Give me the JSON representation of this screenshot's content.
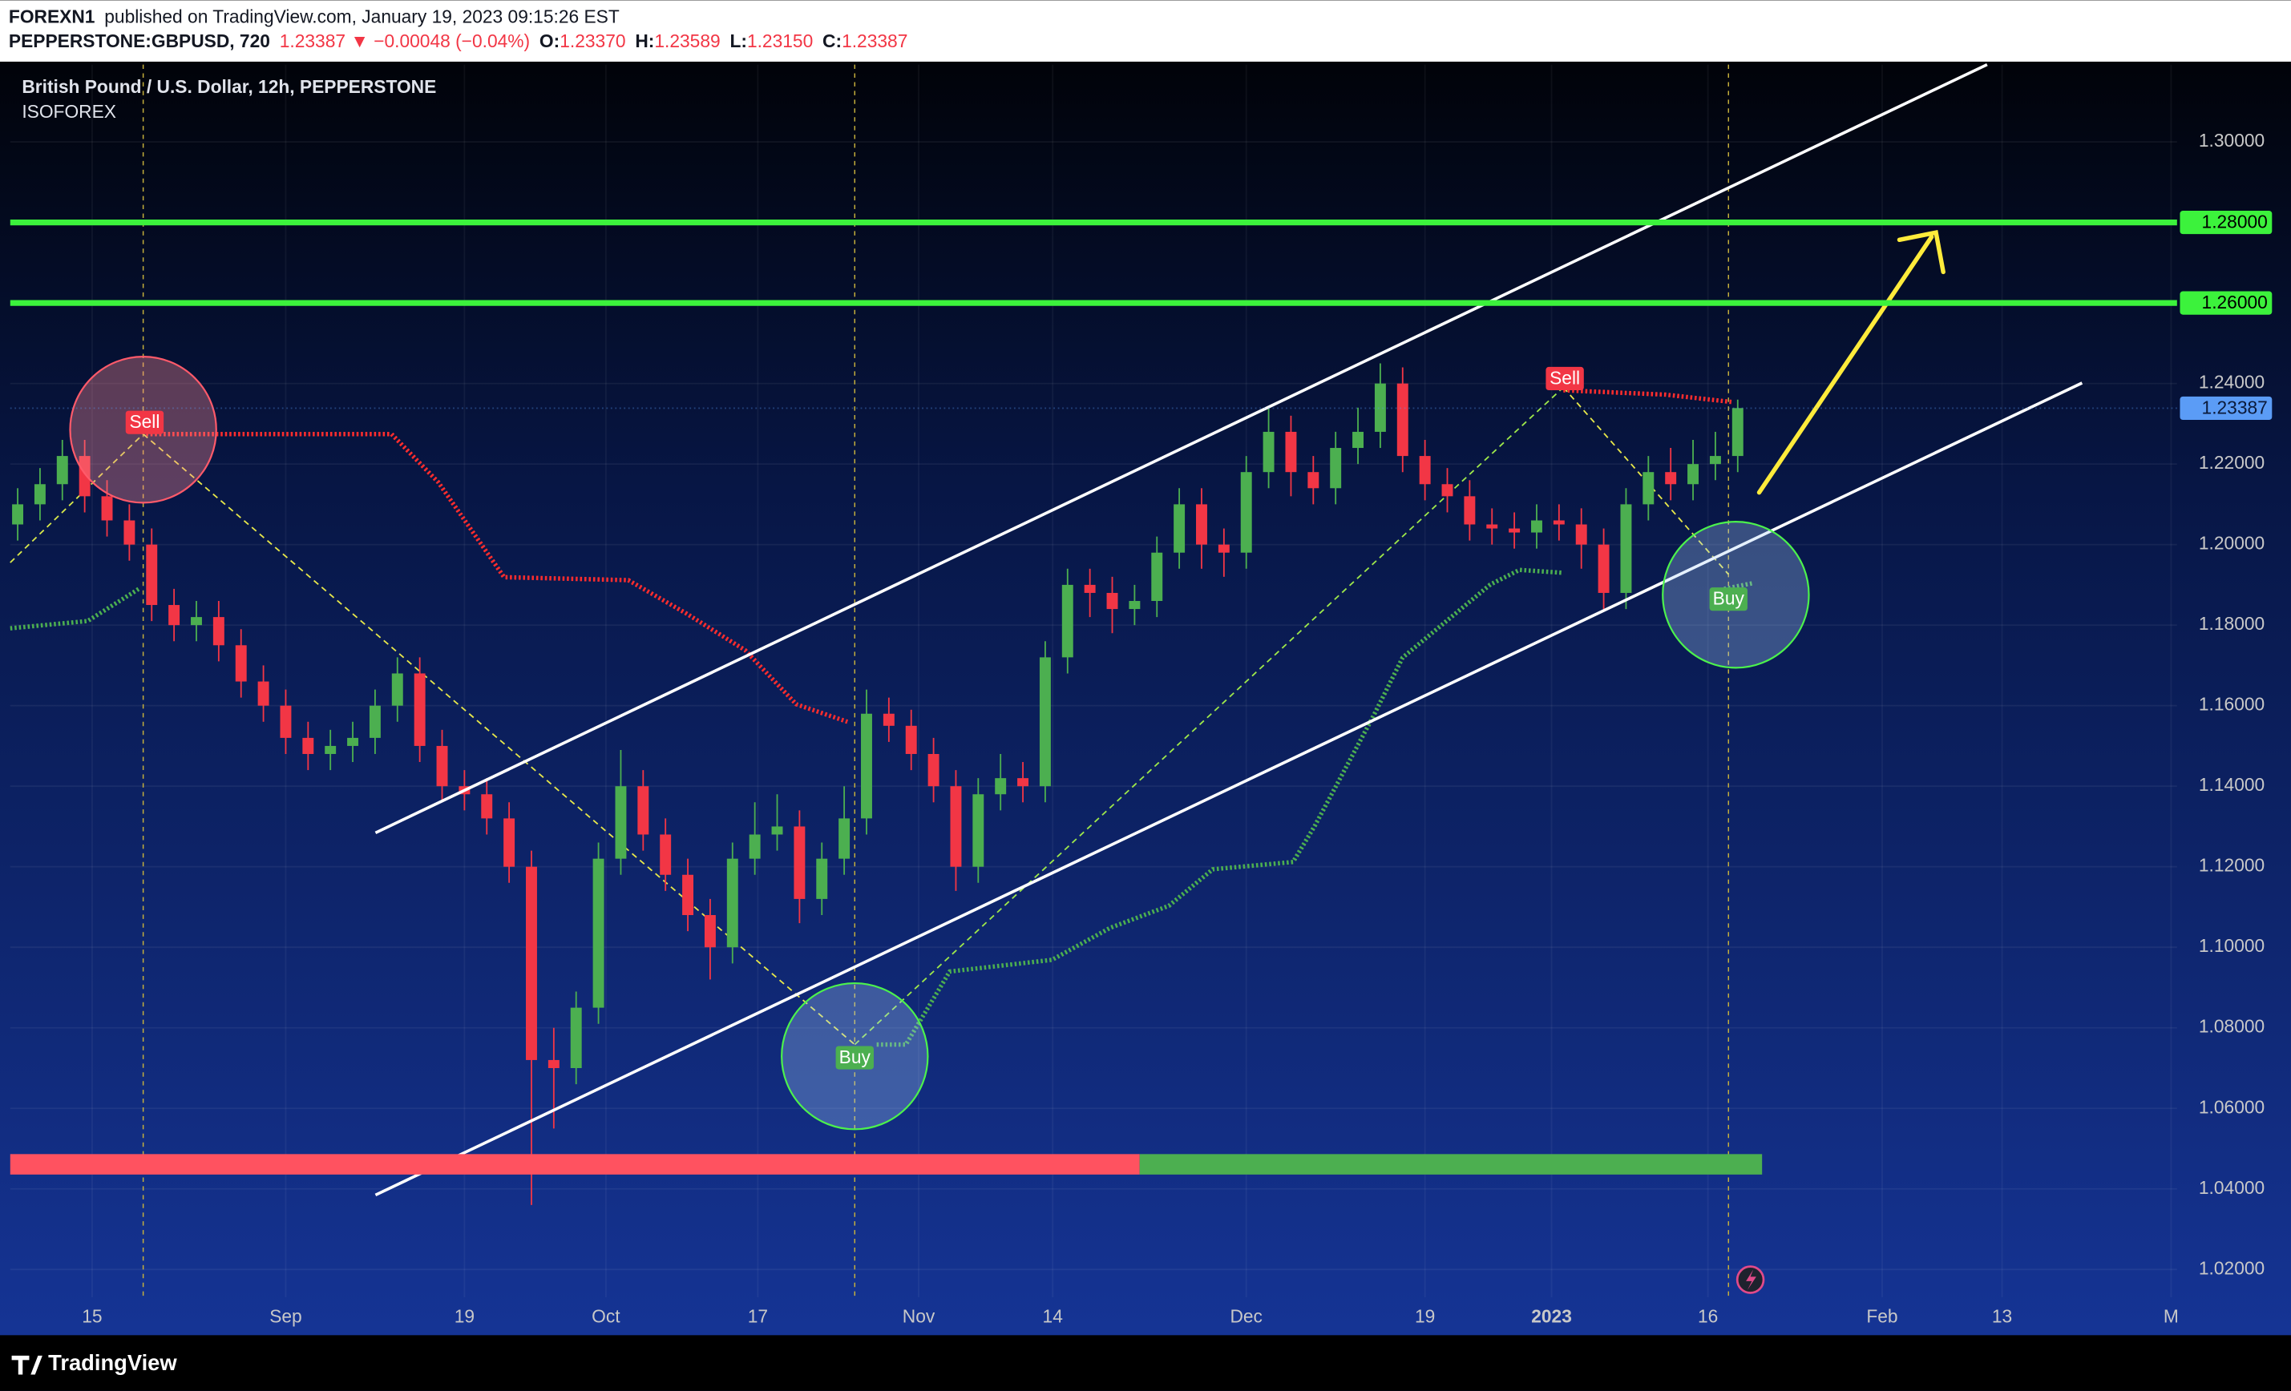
{
  "chart_data": {
    "type": "candlestick",
    "header": {
      "publisher": "FOREXN1",
      "published": "published on TradingView.com, January 19, 2023 09:15:26 EST",
      "symbol": "PEPPERSTONE:GBPUSD, 720",
      "change": "1.23387 ▼ −0.00048 (−0.04%)",
      "ohlc": [
        {
          "label": "O:",
          "value": "1.23370"
        },
        {
          "label": "H:",
          "value": "1.23589"
        },
        {
          "label": "L:",
          "value": "1.23150"
        },
        {
          "label": "C:",
          "value": "1.23387"
        }
      ]
    },
    "title": "British Pound / U.S. Dollar, 12h, PEPPERSTONE",
    "subtitle": "ISOFOREX",
    "signals": [
      "Sell",
      "Buy",
      "Sell",
      "Buy"
    ],
    "brand": "TradingView",
    "colors": {
      "up": "#4caf50",
      "down": "#f23645",
      "level": "#3cf23c",
      "last": "#5b9cf6"
    },
    "xlim": [
      0,
      291
    ],
    "xticks": [
      {
        "value": 11,
        "label": "15"
      },
      {
        "value": 37,
        "label": "Sep"
      },
      {
        "value": 61,
        "label": "19"
      },
      {
        "value": 80,
        "label": "Oct"
      },
      {
        "value": 100.4,
        "label": "17"
      },
      {
        "value": 122,
        "label": "Nov"
      },
      {
        "value": 140,
        "label": "14"
      },
      {
        "value": 166,
        "label": "Dec"
      },
      {
        "value": 190,
        "label": "19"
      },
      {
        "value": 207,
        "label": "2023"
      },
      {
        "value": 228,
        "label": "16"
      },
      {
        "value": 251.4,
        "label": "Feb"
      },
      {
        "value": 267.5,
        "label": "13"
      },
      {
        "value": 290.2,
        "label": "M"
      }
    ],
    "ylim": [
      1.0131,
      1.3192
    ],
    "yticks": [
      {
        "value": 1.3,
        "label": "1.30000"
      },
      {
        "value": 1.24,
        "label": "1.24000"
      },
      {
        "value": 1.22,
        "label": "1.22000"
      },
      {
        "value": 1.2,
        "label": "1.20000"
      },
      {
        "value": 1.18,
        "label": "1.18000"
      },
      {
        "value": 1.16,
        "label": "1.16000"
      },
      {
        "value": 1.14,
        "label": "1.14000"
      },
      {
        "value": 1.12,
        "label": "1.12000"
      },
      {
        "value": 1.1,
        "label": "1.10000"
      },
      {
        "value": 1.08,
        "label": "1.08000"
      },
      {
        "value": 1.06,
        "label": "1.06000"
      },
      {
        "value": 1.04,
        "label": "1.04000"
      },
      {
        "value": 1.02,
        "label": "1.02000"
      }
    ],
    "levels": [
      {
        "value": 1.28,
        "label": "1.28000"
      },
      {
        "value": 1.26,
        "label": "1.26000"
      }
    ],
    "last_price": {
      "value": 1.23387,
      "label": "1.23387"
    },
    "x": [
      1,
      4,
      7,
      10,
      13,
      16,
      19,
      22,
      25,
      28,
      31,
      34,
      37,
      40,
      43,
      46,
      49,
      52,
      55,
      58,
      61,
      64,
      67,
      70,
      73,
      76,
      79,
      82,
      85,
      88,
      91,
      94,
      97,
      100,
      103,
      106,
      109,
      112,
      115,
      118,
      121,
      124,
      127,
      130,
      133,
      136,
      139,
      142,
      145,
      148,
      151,
      154,
      157,
      160,
      163,
      166,
      169,
      172,
      175,
      178,
      181,
      184,
      187,
      190,
      193,
      196,
      199,
      202,
      205,
      208,
      211,
      214,
      217,
      220,
      223,
      226,
      229,
      232
    ],
    "open": [
      1.205,
      1.21,
      1.215,
      1.222,
      1.212,
      1.206,
      1.2,
      1.185,
      1.18,
      1.182,
      1.175,
      1.166,
      1.16,
      1.152,
      1.148,
      1.15,
      1.152,
      1.16,
      1.168,
      1.15,
      1.14,
      1.138,
      1.132,
      1.12,
      1.072,
      1.07,
      1.085,
      1.122,
      1.14,
      1.128,
      1.118,
      1.108,
      1.1,
      1.122,
      1.128,
      1.13,
      1.112,
      1.122,
      1.132,
      1.158,
      1.155,
      1.148,
      1.14,
      1.12,
      1.138,
      1.142,
      1.14,
      1.172,
      1.19,
      1.188,
      1.184,
      1.186,
      1.198,
      1.21,
      1.2,
      1.198,
      1.218,
      1.228,
      1.218,
      1.214,
      1.224,
      1.228,
      1.24,
      1.222,
      1.215,
      1.212,
      1.205,
      1.204,
      1.203,
      1.206,
      1.205,
      1.2,
      1.188,
      1.21,
      1.218,
      1.215,
      1.22,
      1.222
    ],
    "high": [
      1.214,
      1.219,
      1.226,
      1.226,
      1.216,
      1.21,
      1.204,
      1.189,
      1.186,
      1.186,
      1.179,
      1.17,
      1.164,
      1.156,
      1.154,
      1.156,
      1.164,
      1.172,
      1.172,
      1.154,
      1.144,
      1.142,
      1.136,
      1.124,
      1.08,
      1.089,
      1.126,
      1.149,
      1.144,
      1.132,
      1.122,
      1.112,
      1.126,
      1.136,
      1.138,
      1.134,
      1.126,
      1.14,
      1.164,
      1.162,
      1.159,
      1.152,
      1.144,
      1.142,
      1.148,
      1.146,
      1.176,
      1.194,
      1.194,
      1.192,
      1.19,
      1.202,
      1.214,
      1.214,
      1.204,
      1.222,
      1.234,
      1.232,
      1.222,
      1.228,
      1.234,
      1.245,
      1.244,
      1.226,
      1.219,
      1.216,
      1.209,
      1.208,
      1.21,
      1.21,
      1.209,
      1.204,
      1.214,
      1.222,
      1.224,
      1.226,
      1.228,
      1.236
    ],
    "low": [
      1.201,
      1.206,
      1.211,
      1.208,
      1.202,
      1.196,
      1.181,
      1.176,
      1.176,
      1.171,
      1.162,
      1.156,
      1.148,
      1.144,
      1.144,
      1.146,
      1.148,
      1.156,
      1.146,
      1.136,
      1.134,
      1.128,
      1.116,
      1.036,
      1.055,
      1.066,
      1.081,
      1.118,
      1.124,
      1.114,
      1.104,
      1.092,
      1.096,
      1.118,
      1.124,
      1.106,
      1.108,
      1.118,
      1.128,
      1.151,
      1.144,
      1.136,
      1.114,
      1.116,
      1.134,
      1.136,
      1.136,
      1.168,
      1.182,
      1.178,
      1.18,
      1.182,
      1.194,
      1.194,
      1.192,
      1.194,
      1.214,
      1.212,
      1.21,
      1.21,
      1.22,
      1.224,
      1.218,
      1.211,
      1.208,
      1.201,
      1.2,
      1.199,
      1.199,
      1.201,
      1.194,
      1.184,
      1.184,
      1.206,
      1.211,
      1.211,
      1.216,
      1.218
    ],
    "close": [
      1.21,
      1.215,
      1.222,
      1.212,
      1.206,
      1.2,
      1.185,
      1.18,
      1.182,
      1.175,
      1.166,
      1.16,
      1.152,
      1.148,
      1.15,
      1.152,
      1.16,
      1.168,
      1.15,
      1.14,
      1.138,
      1.132,
      1.12,
      1.072,
      1.07,
      1.085,
      1.122,
      1.14,
      1.128,
      1.118,
      1.108,
      1.1,
      1.122,
      1.128,
      1.13,
      1.112,
      1.122,
      1.132,
      1.158,
      1.155,
      1.148,
      1.14,
      1.12,
      1.138,
      1.142,
      1.14,
      1.172,
      1.19,
      1.188,
      1.184,
      1.186,
      1.198,
      1.21,
      1.2,
      1.198,
      1.218,
      1.228,
      1.218,
      1.214,
      1.224,
      1.228,
      1.24,
      1.222,
      1.215,
      1.212,
      1.205,
      1.204,
      1.203,
      1.206,
      1.205,
      1.2,
      1.188,
      1.21,
      1.218,
      1.215,
      1.22,
      1.222,
      1.2339
    ]
  }
}
